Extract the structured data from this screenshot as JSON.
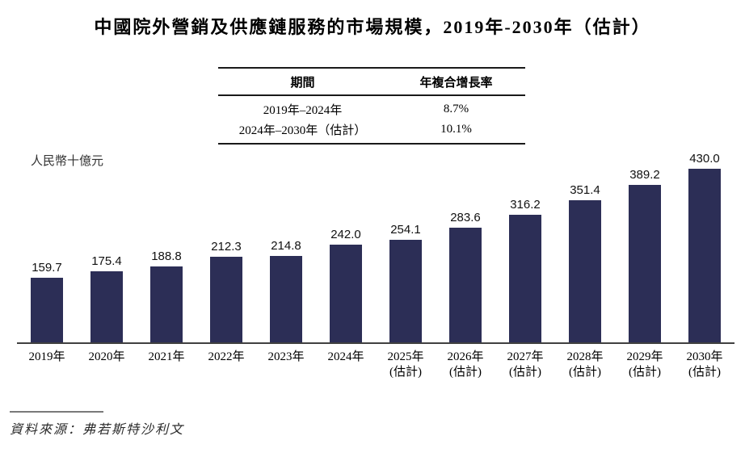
{
  "page": {
    "title": "中國院外營銷及供應鏈服務的市場規模，2019年-2030年（估計）",
    "unit_label": "人民幣十億元",
    "source": "資料來源：弗若斯特沙利文"
  },
  "cagr_table": {
    "period_header": "期間",
    "cagr_header": "年複合增長率",
    "rows": [
      {
        "period": "2019年–2024年",
        "cagr": "8.7%"
      },
      {
        "period": "2024年–2030年（估計）",
        "cagr": "10.1%"
      }
    ]
  },
  "chart_data": {
    "type": "bar",
    "title": "中國院外營銷及供應鏈服務的市場規模，2019年-2030年（估計）",
    "ylabel": "人民幣十億元",
    "xlabel": "",
    "ylim": [
      0,
      460
    ],
    "grid": false,
    "legend": "none",
    "bar_color": "#2c2e56",
    "categories": [
      {
        "year": "2019年",
        "note": ""
      },
      {
        "year": "2020年",
        "note": ""
      },
      {
        "year": "2021年",
        "note": ""
      },
      {
        "year": "2022年",
        "note": ""
      },
      {
        "year": "2023年",
        "note": ""
      },
      {
        "year": "2024年",
        "note": ""
      },
      {
        "year": "2025年",
        "note": "(估計)"
      },
      {
        "year": "2026年",
        "note": "(估計)"
      },
      {
        "year": "2027年",
        "note": "(估計)"
      },
      {
        "year": "2028年",
        "note": "(估計)"
      },
      {
        "year": "2029年",
        "note": "(估計)"
      },
      {
        "year": "2030年",
        "note": "(估計)"
      }
    ],
    "values": [
      159.7,
      175.4,
      188.8,
      212.3,
      214.8,
      242.0,
      254.1,
      283.6,
      316.2,
      351.4,
      389.2,
      430.0
    ]
  }
}
